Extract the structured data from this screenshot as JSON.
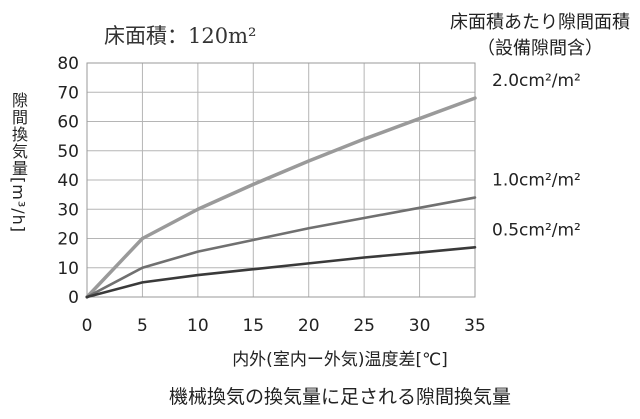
{
  "chart_data": {
    "type": "line",
    "area_label": "床面積：120m²",
    "legend_title_line1": "床面積あたり隙間面積",
    "legend_title_line2": "（設備隙間含）",
    "ylabel": "隙間換気量[m³/h]",
    "xlabel": "内外(室内ー外気)温度差[℃]",
    "caption": "機械換気の換気量に足される隙間換気量",
    "x": [
      0,
      5,
      10,
      15,
      20,
      25,
      30,
      35
    ],
    "xlim": [
      0,
      35
    ],
    "ylim": [
      0,
      80
    ],
    "xticks": [
      0,
      5,
      10,
      15,
      20,
      25,
      30,
      35
    ],
    "yticks": [
      0,
      10,
      20,
      30,
      40,
      50,
      60,
      70,
      80
    ],
    "grid": true,
    "series": [
      {
        "name": "2.0cm²/m²",
        "color": "#9a9a9a",
        "values": [
          0,
          20,
          30,
          38.5,
          46.5,
          54,
          61,
          68
        ]
      },
      {
        "name": "1.0cm²/m²",
        "color": "#707070",
        "values": [
          0,
          10,
          15.5,
          19.5,
          23.5,
          27,
          30.5,
          34
        ]
      },
      {
        "name": "0.5cm²/m²",
        "color": "#3a3a3a",
        "values": [
          0,
          5,
          7.5,
          9.5,
          11.5,
          13.5,
          15.2,
          17
        ]
      }
    ]
  }
}
